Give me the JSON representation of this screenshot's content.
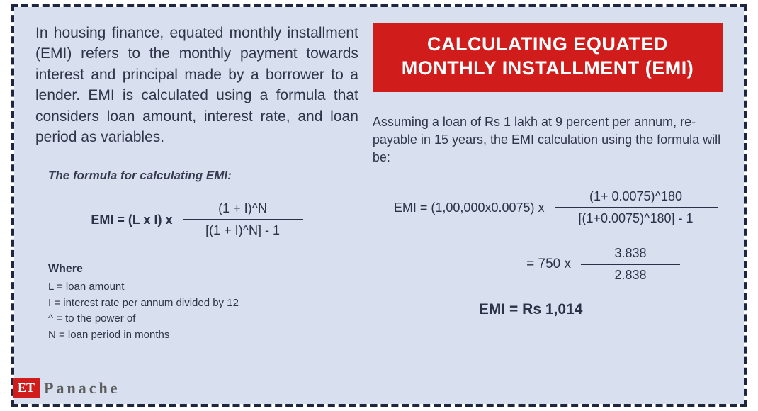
{
  "intro": "In housing finance, equated monthly installment (EMI) refers to the monthly payment towards interest and principal made by a borrower to a lender. EMI is calculated using a formula that considers loan amount, interest rate, and loan period as variables.",
  "formula_title": "The formula for calculating EMI:",
  "formula": {
    "lhs": "EMI =  (L x I) x",
    "numerator": "(1 + I)^N",
    "denominator": "[(1 + I)^N] - 1"
  },
  "where": {
    "label": "Where",
    "l1": "L = loan amount",
    "l2": "I = interest rate per annum divided by 12",
    "l3": "^ = to the power of",
    "l4": "N = loan period in months"
  },
  "banner": {
    "line1": "CALCULATING EQUATED",
    "line2": "MONTHLY INSTALLMENT (EMI)"
  },
  "example_intro": "Assuming a loan of Rs 1 lakh at 9 percent per annum, re-payable in 15 years, the EMI calculation using the formula will be:",
  "example_formula": {
    "lhs": "EMI  =  (1,00,000x0.0075) x",
    "numerator": "(1+ 0.0075)^180",
    "denominator": "[(1+0.0075)^180] - 1"
  },
  "step2": {
    "lhs": "= 750 x",
    "numerator": "3.838",
    "denominator": "2.838"
  },
  "result": "EMI  =  Rs 1,014",
  "watermark": {
    "badge": "ET",
    "text": "Panache"
  },
  "colors": {
    "panel_bg": "#d8e0ef",
    "border": "#1f2740",
    "banner_bg": "#d11c1c",
    "text": "#2f3548"
  }
}
